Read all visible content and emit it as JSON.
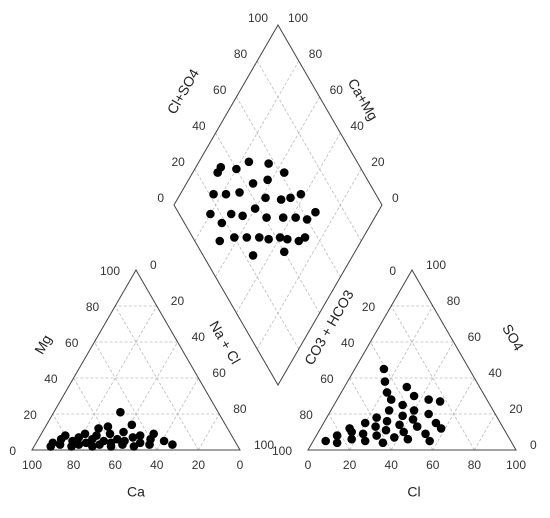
{
  "chart_data": [
    {
      "type": "ternary",
      "x_label": "Ca",
      "y_label": "Mg",
      "color": "#000000",
      "ticks": [
        0,
        20,
        40,
        60,
        80,
        100
      ],
      "x": [
        90,
        88,
        85,
        83,
        80,
        78,
        76,
        74,
        72,
        70,
        68,
        66,
        65,
        63,
        61,
        60,
        58,
        56,
        55,
        53,
        51,
        50,
        48,
        46,
        44,
        42,
        40,
        37,
        34,
        31,
        62,
        70,
        57,
        45,
        47,
        80
      ],
      "values": [
        2,
        4,
        3,
        6,
        2,
        5,
        3,
        7,
        4,
        2,
        6,
        3,
        8,
        5,
        2,
        4,
        9,
        6,
        3,
        5,
        10,
        2,
        7,
        4,
        8,
        3,
        6,
        9,
        5,
        3,
        12,
        9,
        13,
        14,
        21,
        8
      ]
    },
    {
      "type": "ternary",
      "x_label": "Cl",
      "y_label": "SO4",
      "z_label": "CO3 + HCO3",
      "color": "#000000",
      "ticks": [
        0,
        20,
        40,
        60,
        80,
        100
      ],
      "x": [
        6,
        10,
        12,
        14,
        16,
        18,
        20,
        22,
        24,
        25,
        26,
        28,
        29,
        30,
        32,
        33,
        34,
        36,
        37,
        38,
        40,
        41,
        42,
        44,
        45,
        46,
        48,
        50,
        52,
        54,
        14,
        18,
        22,
        30,
        26,
        36,
        56,
        58
      ],
      "values": [
        5,
        8,
        4,
        12,
        10,
        6,
        15,
        9,
        18,
        5,
        13,
        22,
        8,
        16,
        11,
        25,
        4,
        19,
        14,
        7,
        22,
        10,
        17,
        28,
        6,
        13,
        20,
        27,
        9,
        15,
        45,
        38,
        32,
        35,
        28,
        30,
        5,
        12
      ]
    },
    {
      "type": "diamond",
      "left_label": "Cl+SO4",
      "right_label": "Ca+Mg",
      "lower_label": "Na + Cl",
      "color": "#000000",
      "ticks": [
        0,
        20,
        40,
        60,
        80,
        100
      ],
      "x": [
        15,
        12,
        18,
        20,
        22,
        25,
        26,
        28,
        30,
        32,
        33,
        35,
        36,
        38,
        40,
        41,
        42,
        44,
        45,
        46,
        48,
        49,
        50,
        52,
        53,
        55,
        57,
        58,
        60,
        62,
        64,
        66,
        24,
        40,
        30,
        54
      ],
      "values": [
        80,
        68,
        72,
        62,
        84,
        70,
        56,
        78,
        64,
        50,
        88,
        72,
        45,
        60,
        80,
        52,
        40,
        68,
        36,
        58,
        76,
        44,
        30,
        62,
        50,
        38,
        66,
        46,
        32,
        56,
        42,
        30,
        48,
        34,
        88,
        28
      ]
    }
  ]
}
